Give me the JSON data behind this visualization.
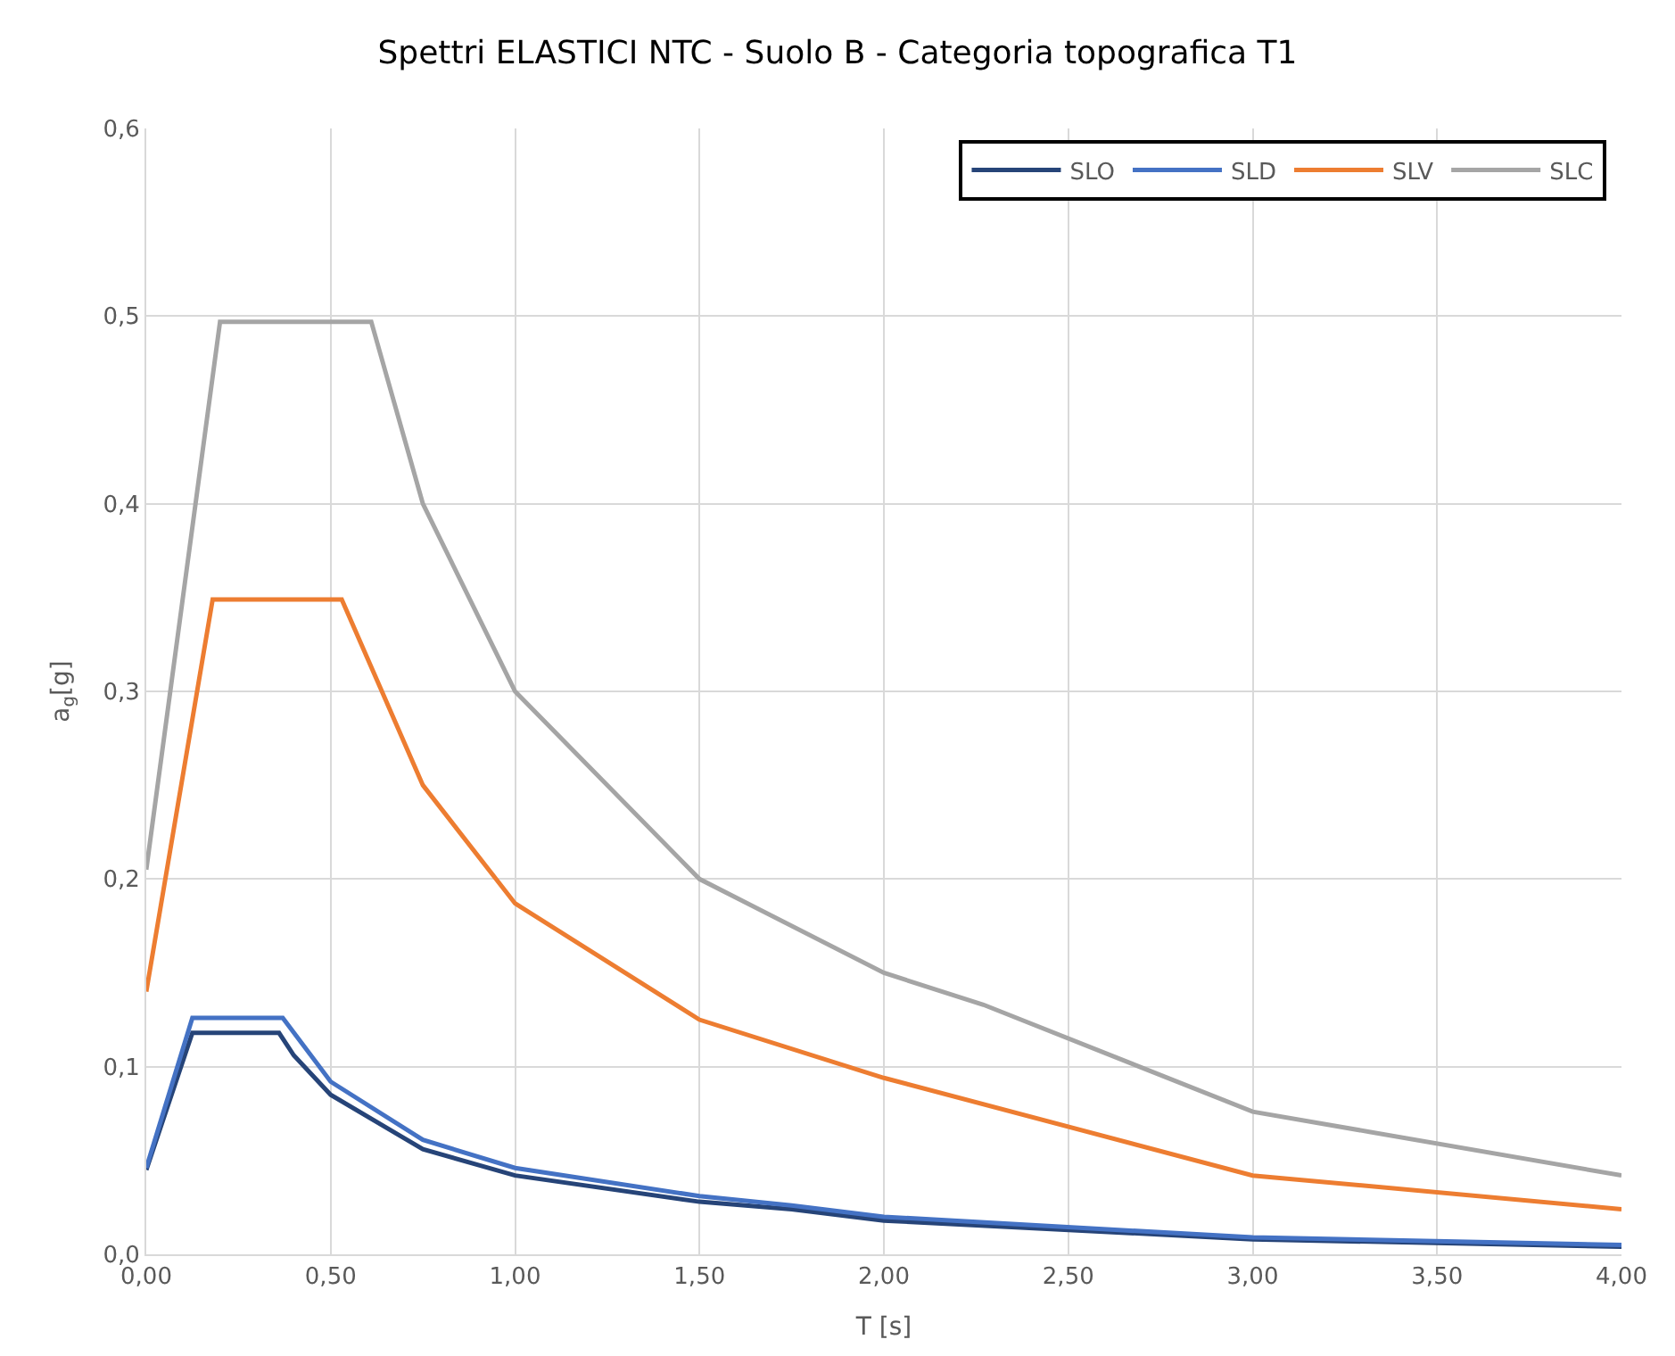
{
  "chart_data": {
    "type": "line",
    "title": "Spettri ELASTICI NTC - Suolo B - Categoria topografica T1",
    "xlabel": "T [s]",
    "ylabel": "a$_{g}$[g]",
    "series": [
      {
        "name": "SLO",
        "color": "#264478",
        "x": [
          0,
          0.125,
          0.36,
          0.4,
          0.5,
          0.75,
          1.0,
          1.5,
          1.75,
          2.0,
          3.0,
          4.0
        ],
        "values": [
          0.045,
          0.118,
          0.118,
          0.106,
          0.085,
          0.056,
          0.042,
          0.028,
          0.024,
          0.018,
          0.008,
          0.004
        ]
      },
      {
        "name": "SLD",
        "color": "#4472c4",
        "x": [
          0,
          0.125,
          0.37,
          0.5,
          0.75,
          1.0,
          1.5,
          1.75,
          2.0,
          3.0,
          4.0
        ],
        "values": [
          0.046,
          0.126,
          0.126,
          0.092,
          0.061,
          0.046,
          0.031,
          0.026,
          0.02,
          0.009,
          0.005
        ]
      },
      {
        "name": "SLV",
        "color": "#ed7d31",
        "x": [
          0,
          0.18,
          0.53,
          0.75,
          1.0,
          1.5,
          2.0,
          3.0,
          4.0
        ],
        "values": [
          0.14,
          0.349,
          0.349,
          0.25,
          0.187,
          0.125,
          0.094,
          0.042,
          0.024
        ]
      },
      {
        "name": "SLC",
        "color": "#a5a5a5",
        "x": [
          0,
          0.2,
          0.61,
          0.75,
          1.0,
          1.5,
          2.0,
          2.27,
          3.0,
          4.0
        ],
        "values": [
          0.205,
          0.497,
          0.497,
          0.4,
          0.3,
          0.2,
          0.15,
          0.133,
          0.076,
          0.042
        ]
      }
    ],
    "xlim": [
      0,
      4
    ],
    "xticks": [
      {
        "value": 0,
        "label": "0,00"
      },
      {
        "value": 0.5,
        "label": "0,50"
      },
      {
        "value": 1,
        "label": "1,00"
      },
      {
        "value": 1.5,
        "label": "1,50"
      },
      {
        "value": 2,
        "label": "2,00"
      },
      {
        "value": 2.5,
        "label": "2,50"
      },
      {
        "value": 3,
        "label": "3,00"
      },
      {
        "value": 3.5,
        "label": "3,50"
      },
      {
        "value": 4,
        "label": "4,00"
      }
    ],
    "ylim": [
      0,
      0.6
    ],
    "yticks": [
      {
        "value": 0,
        "label": "0,0"
      },
      {
        "value": 0.1,
        "label": "0,1"
      },
      {
        "value": 0.2,
        "label": "0,2"
      },
      {
        "value": 0.3,
        "label": "0,3"
      },
      {
        "value": 0.4,
        "label": "0,4"
      },
      {
        "value": 0.5,
        "label": "0,5"
      },
      {
        "value": 0.6,
        "label": "0,6"
      }
    ],
    "grid": true,
    "legend": "top right",
    "marker": "none",
    "line_style": "solid"
  }
}
